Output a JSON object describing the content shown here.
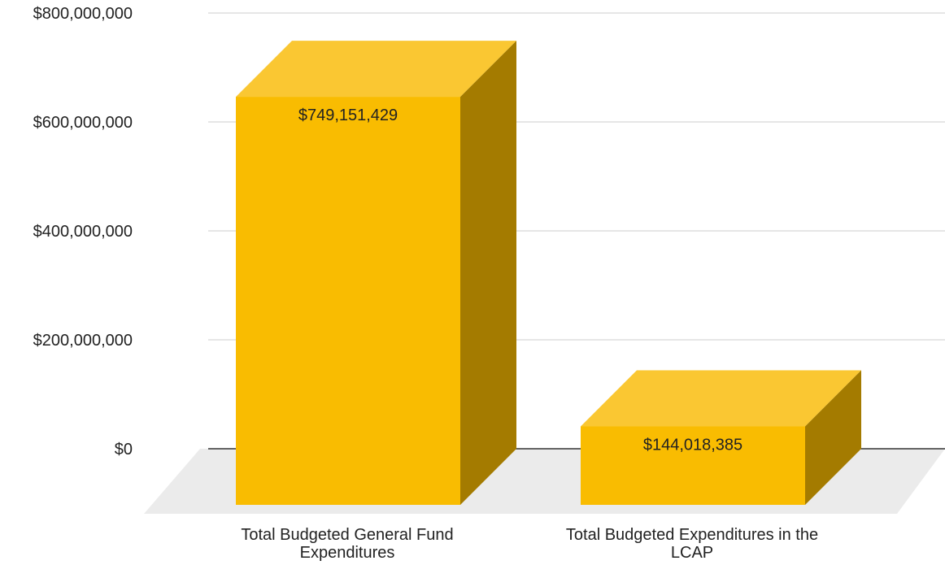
{
  "chart_data": {
    "type": "bar",
    "style": "3d",
    "categories": [
      [
        "Total Budgeted General Fund",
        "Expenditures"
      ],
      [
        "Total Budgeted Expenditures in the",
        "LCAP"
      ]
    ],
    "values": [
      749151429,
      144018385
    ],
    "data_labels": [
      "$749,151,429",
      "$144,018,385"
    ],
    "y_ticks": [
      {
        "value": 0,
        "label": "$0"
      },
      {
        "value": 200000000,
        "label": "$200,000,000"
      },
      {
        "value": 400000000,
        "label": "$400,000,000"
      },
      {
        "value": 600000000,
        "label": "$600,000,000"
      },
      {
        "value": 800000000,
        "label": "$800,000,000"
      }
    ],
    "ylim": [
      0,
      800000000
    ],
    "grid": true,
    "legend": "none",
    "colors": {
      "bar_front": "#F9BC01",
      "bar_top": "#FAC732",
      "bar_side": "#A47B00",
      "grid": "#CCCCCC",
      "zero_line": "#333333",
      "floor": "#EBEBEB",
      "text": "#222222"
    }
  }
}
